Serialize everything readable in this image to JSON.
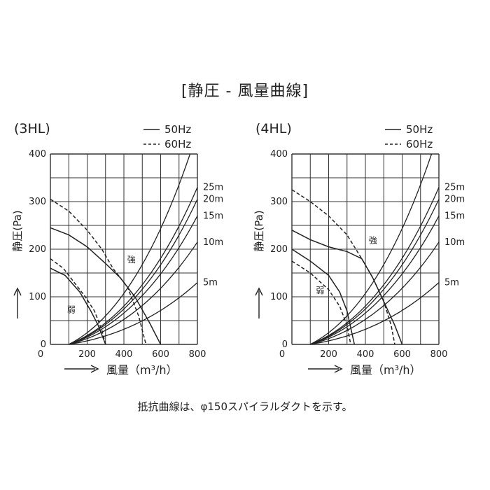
{
  "figure_title": "[静圧 - 風量曲線]",
  "footnote": "抵抗曲線は、φ150スパイラルダクトを示す。",
  "legend": {
    "solid_label": "50Hz",
    "dashed_label": "60Hz"
  },
  "chart_data": [
    {
      "type": "line",
      "title": "(3HL)",
      "xlabel": "風量（m³/h）",
      "ylabel": "静圧(Pa)",
      "xlim": [
        0,
        800
      ],
      "ylim": [
        0,
        400
      ],
      "x_ticks": [
        "0",
        "200",
        "400",
        "600",
        "800"
      ],
      "y_ticks": [
        "0",
        "100",
        "200",
        "300",
        "400"
      ],
      "grid": true,
      "legend_position": "top-right",
      "series": [
        {
          "name": "50Hz",
          "label": "強",
          "style": "solid",
          "points": [
            [
              0,
              245
            ],
            [
              100,
              230
            ],
            [
              200,
              205
            ],
            [
              300,
              170
            ],
            [
              380,
              140
            ],
            [
              460,
              100
            ],
            [
              540,
              45
            ],
            [
              600,
              0
            ]
          ]
        },
        {
          "name": "60Hz",
          "label": "強",
          "style": "dashed",
          "points": [
            [
              0,
              305
            ],
            [
              100,
              280
            ],
            [
              200,
              240
            ],
            [
              280,
              200
            ],
            [
              340,
              160
            ],
            [
              420,
              120
            ],
            [
              480,
              60
            ],
            [
              520,
              0
            ]
          ]
        },
        {
          "name": "50Hz",
          "label": "弱",
          "style": "solid",
          "points": [
            [
              0,
              160
            ],
            [
              80,
              145
            ],
            [
              160,
              110
            ],
            [
              220,
              70
            ],
            [
              260,
              40
            ],
            [
              300,
              0
            ]
          ]
        },
        {
          "name": "60Hz",
          "label": "弱",
          "style": "dashed",
          "points": [
            [
              0,
              180
            ],
            [
              70,
              160
            ],
            [
              130,
              130
            ],
            [
              190,
              100
            ],
            [
              240,
              70
            ],
            [
              280,
              30
            ],
            [
              300,
              0
            ]
          ]
        }
      ],
      "resistance_curves": [
        {
          "label": "5m",
          "end": [
            800,
            130
          ]
        },
        {
          "label": "10m",
          "end": [
            800,
            215
          ]
        },
        {
          "label": "15m",
          "end": [
            800,
            270
          ]
        },
        {
          "label": "20m",
          "end": [
            800,
            305
          ]
        },
        {
          "label": "25m",
          "end": [
            800,
            330
          ]
        },
        {
          "label": "",
          "end": [
            760,
            400
          ]
        }
      ],
      "resistance_origin": [
        100,
        0
      ]
    },
    {
      "type": "line",
      "title": "(4HL)",
      "xlabel": "風量（m³/h）",
      "ylabel": "静圧(Pa)",
      "xlim": [
        0,
        800
      ],
      "ylim": [
        0,
        400
      ],
      "x_ticks": [
        "0",
        "200",
        "400",
        "600",
        "800"
      ],
      "y_ticks": [
        "0",
        "100",
        "200",
        "300",
        "400"
      ],
      "grid": true,
      "legend_position": "top-right",
      "series": [
        {
          "name": "50Hz",
          "label": "強",
          "style": "solid",
          "points": [
            [
              0,
              240
            ],
            [
              100,
              220
            ],
            [
              200,
              205
            ],
            [
              300,
              195
            ],
            [
              380,
              180
            ],
            [
              440,
              140
            ],
            [
              500,
              90
            ],
            [
              560,
              40
            ],
            [
              600,
              0
            ]
          ]
        },
        {
          "name": "60Hz",
          "label": "強",
          "style": "dashed",
          "points": [
            [
              0,
              325
            ],
            [
              100,
              300
            ],
            [
              200,
              270
            ],
            [
              300,
              230
            ],
            [
              380,
              180
            ],
            [
              440,
              140
            ],
            [
              500,
              90
            ],
            [
              540,
              40
            ],
            [
              560,
              0
            ]
          ]
        },
        {
          "name": "50Hz",
          "label": "弱",
          "style": "solid",
          "points": [
            [
              0,
              200
            ],
            [
              100,
              175
            ],
            [
              200,
              145
            ],
            [
              260,
              110
            ],
            [
              300,
              70
            ],
            [
              340,
              0
            ]
          ]
        },
        {
          "name": "60Hz",
          "label": "弱",
          "style": "dashed",
          "points": [
            [
              0,
              175
            ],
            [
              100,
              150
            ],
            [
              200,
              115
            ],
            [
              260,
              80
            ],
            [
              300,
              40
            ],
            [
              320,
              0
            ]
          ]
        }
      ],
      "resistance_curves": [
        {
          "label": "5m",
          "end": [
            800,
            130
          ]
        },
        {
          "label": "10m",
          "end": [
            800,
            215
          ]
        },
        {
          "label": "15m",
          "end": [
            800,
            270
          ]
        },
        {
          "label": "20m",
          "end": [
            800,
            305
          ]
        },
        {
          "label": "25m",
          "end": [
            800,
            330
          ]
        },
        {
          "label": "",
          "end": [
            760,
            400
          ]
        }
      ],
      "resistance_origin": [
        100,
        0
      ]
    }
  ]
}
